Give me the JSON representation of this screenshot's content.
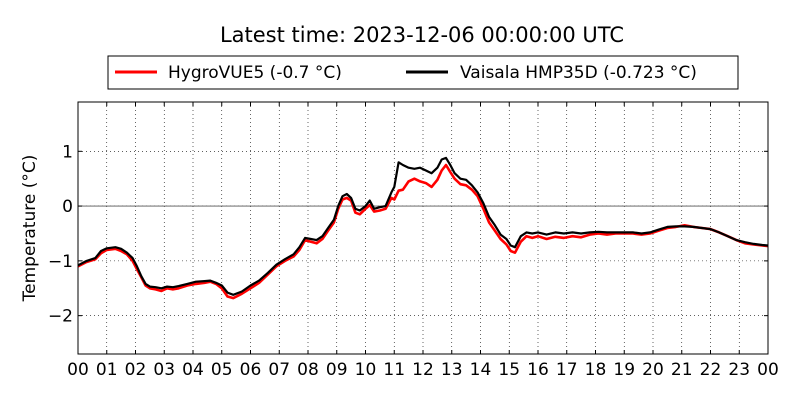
{
  "chart_data": {
    "type": "line",
    "title": "Latest time: 2023-12-06 00:00:00 UTC",
    "ylabel": "Temperature (°C)",
    "xlabel": "",
    "xlim": [
      0,
      24
    ],
    "ylim": [
      -2.7,
      1.9
    ],
    "grid": true,
    "legend_position": "top",
    "x_ticks": [
      "00",
      "01",
      "02",
      "03",
      "04",
      "05",
      "06",
      "07",
      "08",
      "09",
      "10",
      "11",
      "12",
      "13",
      "14",
      "15",
      "16",
      "17",
      "18",
      "19",
      "20",
      "21",
      "22",
      "23",
      "00"
    ],
    "y_ticks": [
      1,
      0,
      -1,
      -2
    ],
    "zero_line": 0,
    "series": [
      {
        "name": "HygroVUE5 (-0.7 °C)",
        "color": "#ff0000",
        "x": [
          0,
          0.3,
          0.6,
          0.8,
          1.0,
          1.3,
          1.5,
          1.7,
          1.9,
          2.05,
          2.2,
          2.35,
          2.5,
          2.7,
          2.9,
          3.1,
          3.3,
          3.5,
          3.8,
          4.1,
          4.4,
          4.6,
          4.8,
          5.0,
          5.2,
          5.4,
          5.7,
          6.0,
          6.3,
          6.6,
          6.9,
          7.2,
          7.5,
          7.7,
          7.9,
          8.1,
          8.3,
          8.5,
          8.7,
          8.9,
          9.05,
          9.2,
          9.35,
          9.5,
          9.65,
          9.8,
          10.0,
          10.15,
          10.3,
          10.5,
          10.7,
          10.9,
          11.0,
          11.15,
          11.3,
          11.5,
          11.7,
          11.9,
          12.1,
          12.3,
          12.5,
          12.65,
          12.8,
          12.95,
          13.1,
          13.3,
          13.5,
          13.7,
          13.9,
          14.1,
          14.3,
          14.5,
          14.7,
          14.9,
          15.05,
          15.2,
          15.4,
          15.6,
          15.8,
          16.0,
          16.3,
          16.6,
          16.9,
          17.2,
          17.5,
          17.8,
          18.1,
          18.4,
          18.7,
          19.0,
          19.3,
          19.6,
          19.9,
          20.2,
          20.5,
          20.8,
          21.1,
          21.4,
          21.7,
          22.0,
          22.3,
          22.6,
          22.9,
          23.2,
          23.5,
          23.8,
          24.0
        ],
        "y": [
          -1.1,
          -1.02,
          -0.97,
          -0.86,
          -0.8,
          -0.78,
          -0.82,
          -0.88,
          -1.0,
          -1.15,
          -1.3,
          -1.45,
          -1.5,
          -1.52,
          -1.55,
          -1.5,
          -1.52,
          -1.5,
          -1.45,
          -1.42,
          -1.4,
          -1.38,
          -1.42,
          -1.5,
          -1.65,
          -1.68,
          -1.6,
          -1.5,
          -1.4,
          -1.25,
          -1.1,
          -1.0,
          -0.92,
          -0.8,
          -0.62,
          -0.65,
          -0.68,
          -0.6,
          -0.45,
          -0.3,
          -0.05,
          0.12,
          0.15,
          0.1,
          -0.12,
          -0.15,
          -0.05,
          0.02,
          -0.1,
          -0.08,
          -0.05,
          0.15,
          0.12,
          0.28,
          0.3,
          0.45,
          0.5,
          0.45,
          0.42,
          0.35,
          0.48,
          0.65,
          0.75,
          0.62,
          0.5,
          0.4,
          0.38,
          0.3,
          0.18,
          -0.05,
          -0.3,
          -0.45,
          -0.6,
          -0.7,
          -0.82,
          -0.85,
          -0.65,
          -0.55,
          -0.58,
          -0.55,
          -0.6,
          -0.56,
          -0.58,
          -0.55,
          -0.57,
          -0.52,
          -0.5,
          -0.52,
          -0.5,
          -0.5,
          -0.5,
          -0.52,
          -0.5,
          -0.45,
          -0.4,
          -0.38,
          -0.35,
          -0.38,
          -0.4,
          -0.42,
          -0.48,
          -0.55,
          -0.62,
          -0.68,
          -0.7,
          -0.72,
          -0.73
        ]
      },
      {
        "name": "Vaisala HMP35D (-0.723 °C)",
        "color": "#000000",
        "x": [
          0,
          0.3,
          0.6,
          0.8,
          1.0,
          1.3,
          1.5,
          1.7,
          1.9,
          2.05,
          2.2,
          2.35,
          2.5,
          2.7,
          2.9,
          3.1,
          3.3,
          3.5,
          3.8,
          4.1,
          4.4,
          4.6,
          4.8,
          5.0,
          5.2,
          5.4,
          5.7,
          6.0,
          6.3,
          6.6,
          6.9,
          7.2,
          7.5,
          7.7,
          7.9,
          8.1,
          8.3,
          8.5,
          8.7,
          8.9,
          9.05,
          9.2,
          9.35,
          9.5,
          9.65,
          9.8,
          10.0,
          10.15,
          10.3,
          10.5,
          10.7,
          10.9,
          11.0,
          11.15,
          11.3,
          11.5,
          11.7,
          11.9,
          12.1,
          12.3,
          12.5,
          12.65,
          12.8,
          12.95,
          13.1,
          13.3,
          13.5,
          13.7,
          13.9,
          14.1,
          14.3,
          14.5,
          14.7,
          14.9,
          15.05,
          15.2,
          15.4,
          15.6,
          15.8,
          16.0,
          16.3,
          16.6,
          16.9,
          17.2,
          17.5,
          17.8,
          18.1,
          18.4,
          18.7,
          19.0,
          19.3,
          19.6,
          19.9,
          20.2,
          20.5,
          20.8,
          21.1,
          21.4,
          21.7,
          22.0,
          22.3,
          22.6,
          22.9,
          23.2,
          23.5,
          23.8,
          24.0
        ],
        "y": [
          -1.08,
          -1.0,
          -0.95,
          -0.82,
          -0.77,
          -0.75,
          -0.78,
          -0.85,
          -0.95,
          -1.1,
          -1.28,
          -1.42,
          -1.47,
          -1.48,
          -1.5,
          -1.47,
          -1.48,
          -1.46,
          -1.42,
          -1.38,
          -1.37,
          -1.36,
          -1.4,
          -1.45,
          -1.58,
          -1.62,
          -1.56,
          -1.45,
          -1.36,
          -1.22,
          -1.07,
          -0.97,
          -0.88,
          -0.75,
          -0.58,
          -0.6,
          -0.62,
          -0.55,
          -0.4,
          -0.25,
          0.0,
          0.18,
          0.22,
          0.15,
          -0.05,
          -0.08,
          0.0,
          0.1,
          -0.05,
          -0.02,
          0.0,
          0.25,
          0.35,
          0.8,
          0.75,
          0.7,
          0.68,
          0.7,
          0.65,
          0.6,
          0.7,
          0.85,
          0.88,
          0.75,
          0.6,
          0.5,
          0.48,
          0.38,
          0.25,
          0.05,
          -0.2,
          -0.35,
          -0.52,
          -0.6,
          -0.72,
          -0.75,
          -0.55,
          -0.48,
          -0.5,
          -0.48,
          -0.52,
          -0.48,
          -0.5,
          -0.48,
          -0.5,
          -0.48,
          -0.47,
          -0.48,
          -0.48,
          -0.48,
          -0.48,
          -0.5,
          -0.48,
          -0.43,
          -0.38,
          -0.37,
          -0.37,
          -0.38,
          -0.4,
          -0.42,
          -0.48,
          -0.55,
          -0.62,
          -0.66,
          -0.69,
          -0.71,
          -0.72
        ]
      }
    ]
  }
}
